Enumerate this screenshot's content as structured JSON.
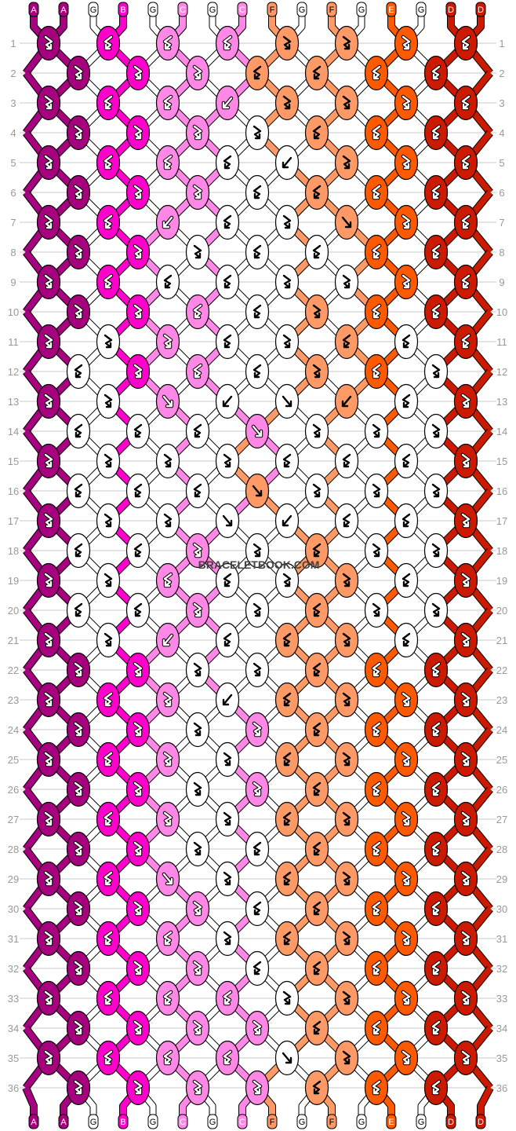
{
  "strings": [
    "A",
    "A",
    "G",
    "B",
    "G",
    "C",
    "G",
    "C",
    "F",
    "G",
    "F",
    "G",
    "E",
    "G",
    "D",
    "D"
  ],
  "colors": {
    "A": "#a6007f",
    "B": "#ff00cc",
    "C": "#ff88e6",
    "D": "#cc1a00",
    "E": "#ff5a00",
    "F": "#ff9966",
    "G": "#ffffff"
  },
  "watermark": "BRACELETBOOK.COM",
  "rows": [
    [
      [
        "A",
        "fb"
      ],
      [
        "B",
        "bf"
      ],
      [
        "C",
        "bf"
      ],
      [
        "C",
        "bf"
      ],
      [
        "F",
        "fb"
      ],
      [
        "F",
        "fb"
      ],
      [
        "E",
        "fb"
      ],
      [
        "D",
        "bf"
      ]
    ],
    [
      [
        "A",
        "fb"
      ],
      [
        "B",
        "fb"
      ],
      [
        "C",
        "fb"
      ],
      [
        "F",
        "bf"
      ],
      [
        "F",
        "bf"
      ],
      [
        "E",
        "bf"
      ],
      [
        "D",
        "bf"
      ]
    ],
    [
      [
        "A",
        "fb"
      ],
      [
        "B",
        "bf"
      ],
      [
        "C",
        "bf"
      ],
      [
        "C",
        "b"
      ],
      [
        "F",
        "fb"
      ],
      [
        "F",
        "fb"
      ],
      [
        "E",
        "fb"
      ],
      [
        "D",
        "bf"
      ]
    ],
    [
      [
        "A",
        "fb"
      ],
      [
        "B",
        "fb"
      ],
      [
        "C",
        "fb"
      ],
      [
        "G",
        "fb"
      ],
      [
        "F",
        "bf"
      ],
      [
        "E",
        "bf"
      ],
      [
        "D",
        "bf"
      ]
    ],
    [
      [
        "A",
        "fb"
      ],
      [
        "B",
        "bf"
      ],
      [
        "C",
        "bf"
      ],
      [
        "G",
        "bf"
      ],
      [
        "G",
        "b"
      ],
      [
        "F",
        "fb"
      ],
      [
        "E",
        "fb"
      ],
      [
        "D",
        "bf"
      ]
    ],
    [
      [
        "A",
        "fb"
      ],
      [
        "B",
        "fb"
      ],
      [
        "C",
        "fb"
      ],
      [
        "G",
        "bf"
      ],
      [
        "F",
        "bf"
      ],
      [
        "E",
        "bf"
      ],
      [
        "D",
        "bf"
      ]
    ],
    [
      [
        "A",
        "fb"
      ],
      [
        "B",
        "bf"
      ],
      [
        "C",
        "b"
      ],
      [
        "G",
        "bf"
      ],
      [
        "G",
        "fb"
      ],
      [
        "F",
        "f"
      ],
      [
        "E",
        "fb"
      ],
      [
        "D",
        "bf"
      ]
    ],
    [
      [
        "A",
        "fb"
      ],
      [
        "B",
        "fb"
      ],
      [
        "G",
        "fb"
      ],
      [
        "G",
        "bf"
      ],
      [
        "G",
        "bf"
      ],
      [
        "E",
        "bf"
      ],
      [
        "D",
        "bf"
      ]
    ],
    [
      [
        "A",
        "fb"
      ],
      [
        "B",
        "bf"
      ],
      [
        "G",
        "bf"
      ],
      [
        "G",
        "bf"
      ],
      [
        "G",
        "fb"
      ],
      [
        "G",
        "fb"
      ],
      [
        "E",
        "fb"
      ],
      [
        "D",
        "bf"
      ]
    ],
    [
      [
        "A",
        "fb"
      ],
      [
        "B",
        "fb"
      ],
      [
        "C",
        "bf"
      ],
      [
        "G",
        "bf"
      ],
      [
        "F",
        "fb"
      ],
      [
        "E",
        "bf"
      ],
      [
        "D",
        "bf"
      ]
    ],
    [
      [
        "A",
        "fb"
      ],
      [
        "G",
        "fb"
      ],
      [
        "C",
        "fb"
      ],
      [
        "G",
        "bf"
      ],
      [
        "G",
        "fb"
      ],
      [
        "F",
        "bf"
      ],
      [
        "G",
        "bf"
      ],
      [
        "D",
        "bf"
      ]
    ],
    [
      [
        "G",
        "bf"
      ],
      [
        "B",
        "fb"
      ],
      [
        "C",
        "bf"
      ],
      [
        "G",
        "bf"
      ],
      [
        "F",
        "fb"
      ],
      [
        "E",
        "bf"
      ],
      [
        "G",
        "fb"
      ]
    ],
    [
      [
        "A",
        "fb"
      ],
      [
        "G",
        "fb"
      ],
      [
        "C",
        "f"
      ],
      [
        "G",
        "b"
      ],
      [
        "G",
        "f"
      ],
      [
        "F",
        "b"
      ],
      [
        "G",
        "bf"
      ],
      [
        "D",
        "fb"
      ]
    ],
    [
      [
        "G",
        "bf"
      ],
      [
        "G",
        "bf"
      ],
      [
        "G",
        "bf"
      ],
      [
        "C",
        "f"
      ],
      [
        "G",
        "fb"
      ],
      [
        "G",
        "fb"
      ],
      [
        "G",
        "fb"
      ]
    ],
    [
      [
        "A",
        "fb"
      ],
      [
        "G",
        "fb"
      ],
      [
        "G",
        "fb"
      ],
      [
        "G",
        "fb"
      ],
      [
        "G",
        "bf"
      ],
      [
        "G",
        "bf"
      ],
      [
        "G",
        "bf"
      ],
      [
        "D",
        "fb"
      ]
    ],
    [
      [
        "G",
        "bf"
      ],
      [
        "G",
        "bf"
      ],
      [
        "G",
        "bf"
      ],
      [
        "F",
        "f"
      ],
      [
        "G",
        "fb"
      ],
      [
        "G",
        "fb"
      ],
      [
        "G",
        "fb"
      ]
    ],
    [
      [
        "A",
        "fb"
      ],
      [
        "G",
        "fb"
      ],
      [
        "G",
        "fb"
      ],
      [
        "G",
        "f"
      ],
      [
        "G",
        "b"
      ],
      [
        "G",
        "bf"
      ],
      [
        "G",
        "bf"
      ],
      [
        "D",
        "fb"
      ]
    ],
    [
      [
        "G",
        "bf"
      ],
      [
        "G",
        "bf"
      ],
      [
        "C",
        "fb"
      ],
      [
        "G",
        "fb"
      ],
      [
        "F",
        "bf"
      ],
      [
        "G",
        "fb"
      ],
      [
        "G",
        "fb"
      ]
    ],
    [
      [
        "A",
        "fb"
      ],
      [
        "G",
        "fb"
      ],
      [
        "C",
        "bf"
      ],
      [
        "G",
        "bf"
      ],
      [
        "G",
        "fb"
      ],
      [
        "F",
        "fb"
      ],
      [
        "G",
        "bf"
      ],
      [
        "D",
        "fb"
      ]
    ],
    [
      [
        "G",
        "bf"
      ],
      [
        "G",
        "bf"
      ],
      [
        "C",
        "fb"
      ],
      [
        "G",
        "fb"
      ],
      [
        "F",
        "bf"
      ],
      [
        "G",
        "fb"
      ],
      [
        "G",
        "fb"
      ]
    ],
    [
      [
        "A",
        "fb"
      ],
      [
        "G",
        "fb"
      ],
      [
        "C",
        "b"
      ],
      [
        "G",
        "bf"
      ],
      [
        "F",
        "bf"
      ],
      [
        "F",
        "fb"
      ],
      [
        "G",
        "bf"
      ],
      [
        "D",
        "fb"
      ]
    ],
    [
      [
        "A",
        "fb"
      ],
      [
        "B",
        "fb"
      ],
      [
        "G",
        "fb"
      ],
      [
        "G",
        "fb"
      ],
      [
        "F",
        "bf"
      ],
      [
        "E",
        "bf"
      ],
      [
        "D",
        "bf"
      ]
    ],
    [
      [
        "A",
        "fb"
      ],
      [
        "B",
        "bf"
      ],
      [
        "C",
        "fb"
      ],
      [
        "G",
        "b"
      ],
      [
        "F",
        "bf"
      ],
      [
        "F",
        "fb"
      ],
      [
        "E",
        "fb"
      ],
      [
        "D",
        "fb"
      ]
    ],
    [
      [
        "A",
        "fb"
      ],
      [
        "B",
        "fb"
      ],
      [
        "G",
        "fb"
      ],
      [
        "C",
        "fb"
      ],
      [
        "F",
        "bf"
      ],
      [
        "E",
        "bf"
      ],
      [
        "D",
        "bf"
      ]
    ],
    [
      [
        "A",
        "fb"
      ],
      [
        "B",
        "bf"
      ],
      [
        "C",
        "fb"
      ],
      [
        "G",
        "fb"
      ],
      [
        "F",
        "bf"
      ],
      [
        "F",
        "fb"
      ],
      [
        "E",
        "fb"
      ],
      [
        "D",
        "fb"
      ]
    ],
    [
      [
        "A",
        "fb"
      ],
      [
        "B",
        "fb"
      ],
      [
        "G",
        "fb"
      ],
      [
        "C",
        "fb"
      ],
      [
        "F",
        "bf"
      ],
      [
        "E",
        "bf"
      ],
      [
        "D",
        "bf"
      ]
    ],
    [
      [
        "A",
        "fb"
      ],
      [
        "B",
        "bf"
      ],
      [
        "C",
        "fb"
      ],
      [
        "G",
        "fb"
      ],
      [
        "F",
        "bf"
      ],
      [
        "F",
        "fb"
      ],
      [
        "E",
        "fb"
      ],
      [
        "D",
        "fb"
      ]
    ],
    [
      [
        "A",
        "fb"
      ],
      [
        "B",
        "fb"
      ],
      [
        "G",
        "fb"
      ],
      [
        "G",
        "bf"
      ],
      [
        "F",
        "bf"
      ],
      [
        "E",
        "bf"
      ],
      [
        "D",
        "bf"
      ]
    ],
    [
      [
        "A",
        "fb"
      ],
      [
        "B",
        "bf"
      ],
      [
        "C",
        "f"
      ],
      [
        "G",
        "fb"
      ],
      [
        "F",
        "bf"
      ],
      [
        "F",
        "fb"
      ],
      [
        "E",
        "fb"
      ],
      [
        "D",
        "fb"
      ]
    ],
    [
      [
        "A",
        "fb"
      ],
      [
        "B",
        "fb"
      ],
      [
        "C",
        "fb"
      ],
      [
        "G",
        "bf"
      ],
      [
        "F",
        "bf"
      ],
      [
        "E",
        "bf"
      ],
      [
        "D",
        "bf"
      ]
    ],
    [
      [
        "A",
        "fb"
      ],
      [
        "B",
        "bf"
      ],
      [
        "C",
        "bf"
      ],
      [
        "G",
        "fb"
      ],
      [
        "F",
        "bf"
      ],
      [
        "F",
        "fb"
      ],
      [
        "E",
        "fb"
      ],
      [
        "D",
        "fb"
      ]
    ],
    [
      [
        "A",
        "fb"
      ],
      [
        "B",
        "fb"
      ],
      [
        "C",
        "fb"
      ],
      [
        "G",
        "bf"
      ],
      [
        "F",
        "bf"
      ],
      [
        "E",
        "bf"
      ],
      [
        "D",
        "bf"
      ]
    ],
    [
      [
        "A",
        "fb"
      ],
      [
        "B",
        "bf"
      ],
      [
        "C",
        "bf"
      ],
      [
        "C",
        "bf"
      ],
      [
        "G",
        "fb"
      ],
      [
        "F",
        "fb"
      ],
      [
        "E",
        "fb"
      ],
      [
        "D",
        "fb"
      ]
    ],
    [
      [
        "A",
        "fb"
      ],
      [
        "B",
        "fb"
      ],
      [
        "C",
        "fb"
      ],
      [
        "C",
        "fb"
      ],
      [
        "F",
        "bf"
      ],
      [
        "E",
        "bf"
      ],
      [
        "D",
        "bf"
      ]
    ],
    [
      [
        "A",
        "fb"
      ],
      [
        "B",
        "bf"
      ],
      [
        "C",
        "bf"
      ],
      [
        "C",
        "bf"
      ],
      [
        "G",
        "f"
      ],
      [
        "F",
        "fb"
      ],
      [
        "E",
        "fb"
      ],
      [
        "D",
        "fb"
      ]
    ],
    [
      [
        "A",
        "fb"
      ],
      [
        "B",
        "fb"
      ],
      [
        "C",
        "fb"
      ],
      [
        "C",
        "fb"
      ],
      [
        "F",
        "bf"
      ],
      [
        "E",
        "bf"
      ],
      [
        "D",
        "bf"
      ]
    ]
  ]
}
